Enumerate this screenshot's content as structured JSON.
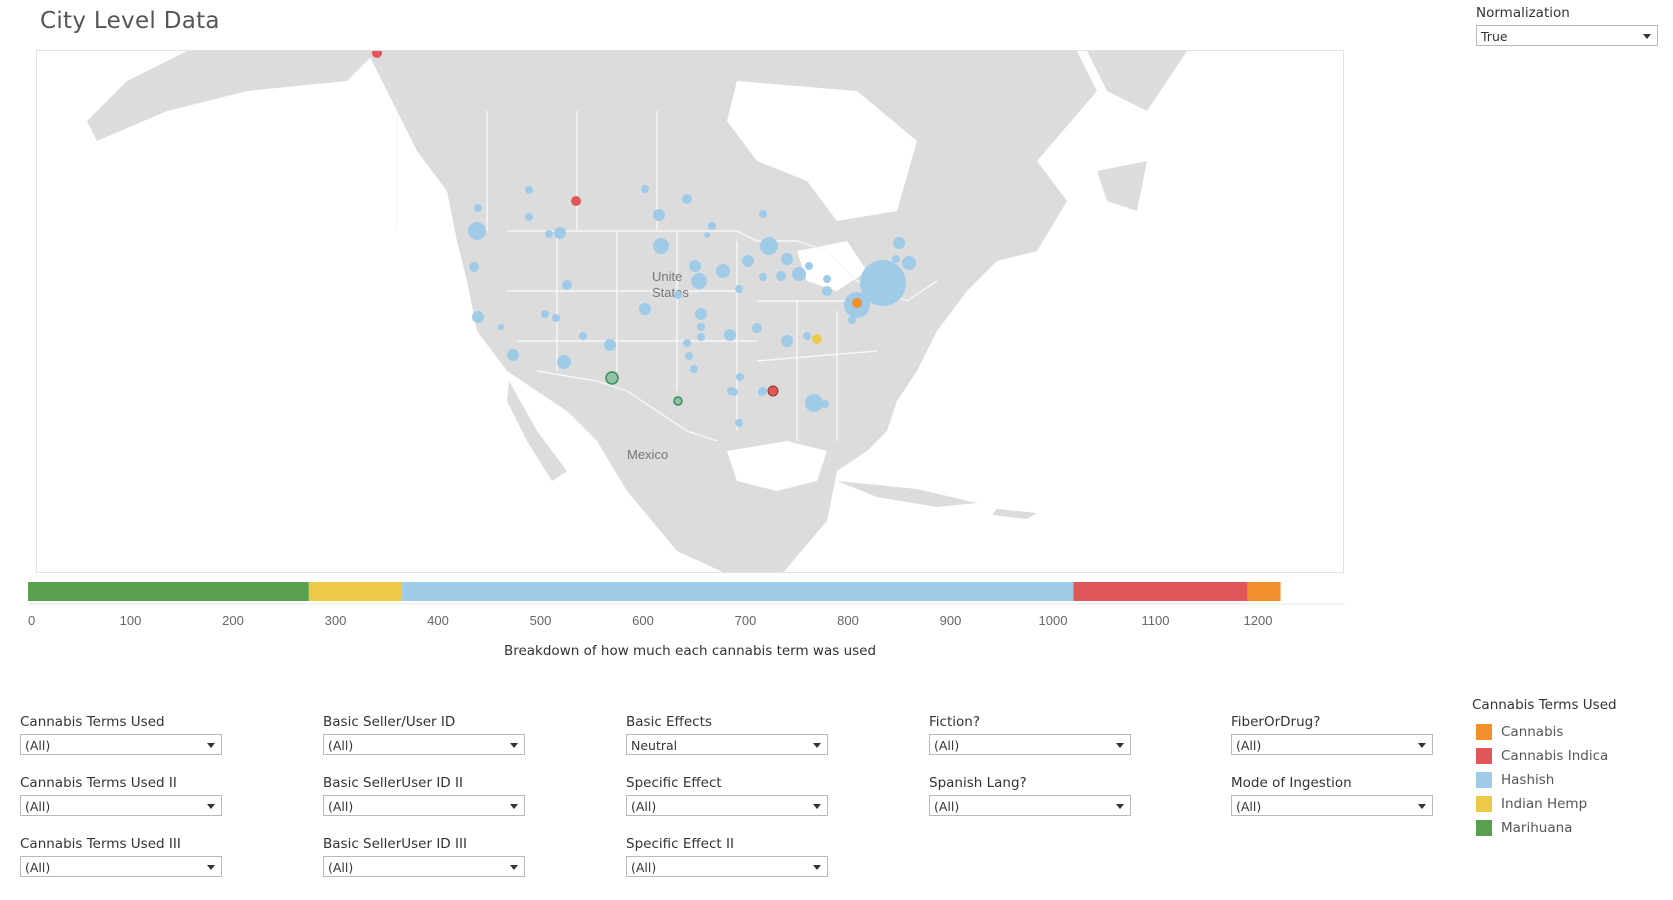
{
  "title": "City Level Data",
  "normalization": {
    "label": "Normalization",
    "value": "True"
  },
  "map": {
    "labels": {
      "us_line1": "Unite",
      "us_line2": "States",
      "mexico": "Mexico"
    },
    "colors": {
      "land": "#dcdcdc",
      "border": "#f7f7f7",
      "ocean": "#ffffff"
    }
  },
  "bar": {
    "caption": "Breakdown of how much each cannabis term was used",
    "ticks": [
      0,
      100,
      200,
      300,
      400,
      500,
      600,
      700,
      800,
      900,
      1000,
      1100,
      1200
    ],
    "segments": [
      {
        "term": "Marihuana",
        "start": 0,
        "end": 274
      },
      {
        "term": "Indian Hemp",
        "start": 274,
        "end": 365
      },
      {
        "term": "Hashish",
        "start": 365,
        "end": 1020
      },
      {
        "term": "Cannabis Indica",
        "start": 1020,
        "end": 1190
      },
      {
        "term": "Cannabis",
        "start": 1190,
        "end": 1222
      }
    ]
  },
  "filters": [
    {
      "id": "terms",
      "label": "Cannabis Terms Used",
      "value": "(All)"
    },
    {
      "id": "seller",
      "label": "Basic Seller/User ID",
      "value": "(All)"
    },
    {
      "id": "effects",
      "label": "Basic Effects",
      "value": "Neutral"
    },
    {
      "id": "fiction",
      "label": "Fiction?",
      "value": "(All)"
    },
    {
      "id": "fiber",
      "label": "FiberOrDrug?",
      "value": "(All)"
    },
    {
      "id": "terms2",
      "label": "Cannabis Terms Used II",
      "value": "(All)"
    },
    {
      "id": "seller2",
      "label": "Basic SellerUser ID II",
      "value": "(All)"
    },
    {
      "id": "specific",
      "label": "Specific Effect",
      "value": "(All)"
    },
    {
      "id": "spanish",
      "label": "Spanish Lang?",
      "value": "(All)"
    },
    {
      "id": "mode",
      "label": "Mode of Ingestion",
      "value": "(All)"
    },
    {
      "id": "terms3",
      "label": "Cannabis Terms Used III",
      "value": "(All)"
    },
    {
      "id": "seller3",
      "label": "Basic SellerUser ID III",
      "value": "(All)"
    },
    {
      "id": "specific2",
      "label": "Specific Effect II",
      "value": "(All)"
    }
  ],
  "legend": {
    "title": "Cannabis Terms Used",
    "items": [
      {
        "name": "Cannabis",
        "color": "#f28e2b"
      },
      {
        "name": "Cannabis Indica",
        "color": "#e15759"
      },
      {
        "name": "Hashish",
        "color": "#a0cbe8"
      },
      {
        "name": "Indian Hemp",
        "color": "#edc948"
      },
      {
        "name": "Marihuana",
        "color": "#59a14f"
      }
    ]
  },
  "icons": {
    "scroll_up": "chevron-up-icon",
    "scroll_down": "chevron-down-icon",
    "dropdown": "caret-down-icon"
  }
}
